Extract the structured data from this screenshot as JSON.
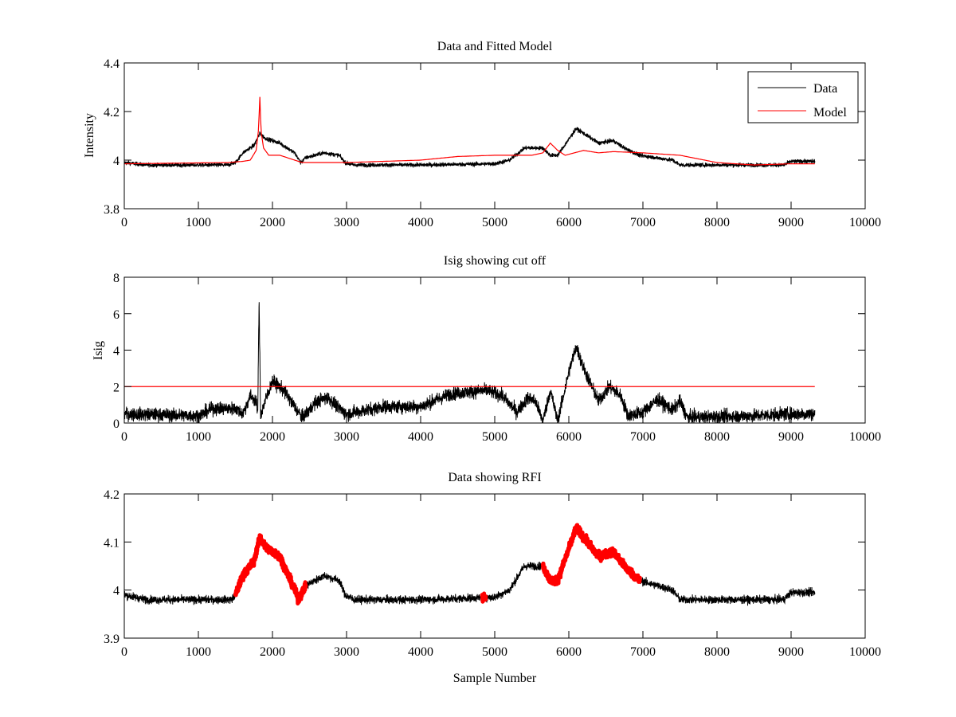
{
  "chart_data": [
    {
      "type": "line",
      "title": "Data and Fitted Model",
      "xlabel": "",
      "ylabel": "Intensity",
      "xlim": [
        0,
        10000
      ],
      "ylim": [
        3.8,
        4.4
      ],
      "xticks": [
        "0",
        "1000",
        "2000",
        "3000",
        "4000",
        "5000",
        "6000",
        "7000",
        "8000",
        "9000",
        "10000"
      ],
      "yticks": [
        "3.8",
        "4",
        "4.2",
        "4.4"
      ],
      "ytick_values": [
        3.8,
        4.0,
        4.2,
        4.4
      ],
      "grid": false,
      "legend": {
        "placement": "top-right",
        "entries": [
          "Data",
          "Model"
        ]
      },
      "series": [
        {
          "name": "Data",
          "color": "#000000",
          "noise": 0.008,
          "anchors": [
            [
              0,
              3.99
            ],
            [
              300,
              3.98
            ],
            [
              1000,
              3.98
            ],
            [
              1400,
              3.98
            ],
            [
              1500,
              3.99
            ],
            [
              1600,
              4.03
            ],
            [
              1750,
              4.06
            ],
            [
              1830,
              4.11
            ],
            [
              1900,
              4.09
            ],
            [
              2100,
              4.07
            ],
            [
              2300,
              4.03
            ],
            [
              2380,
              3.99
            ],
            [
              2450,
              4.01
            ],
            [
              2700,
              4.03
            ],
            [
              2900,
              4.02
            ],
            [
              2980,
              3.99
            ],
            [
              3100,
              3.98
            ],
            [
              4000,
              3.98
            ],
            [
              5000,
              3.985
            ],
            [
              5200,
              4.0
            ],
            [
              5400,
              4.05
            ],
            [
              5650,
              4.05
            ],
            [
              5750,
              4.02
            ],
            [
              5850,
              4.02
            ],
            [
              6100,
              4.13
            ],
            [
              6250,
              4.1
            ],
            [
              6400,
              4.07
            ],
            [
              6600,
              4.08
            ],
            [
              6750,
              4.05
            ],
            [
              6950,
              4.02
            ],
            [
              7400,
              4.0
            ],
            [
              7500,
              3.98
            ],
            [
              8500,
              3.98
            ],
            [
              8900,
              3.98
            ],
            [
              9000,
              3.995
            ],
            [
              9320,
              3.995
            ]
          ]
        },
        {
          "name": "Model",
          "color": "#ff0000",
          "noise": 0,
          "anchors": [
            [
              0,
              3.985
            ],
            [
              1400,
              3.99
            ],
            [
              1600,
              3.995
            ],
            [
              1700,
              4.0
            ],
            [
              1780,
              4.04
            ],
            [
              1810,
              4.12
            ],
            [
              1830,
              4.26
            ],
            [
              1845,
              4.12
            ],
            [
              1880,
              4.05
            ],
            [
              1950,
              4.02
            ],
            [
              2100,
              4.02
            ],
            [
              2300,
              4.0
            ],
            [
              2400,
              3.99
            ],
            [
              3000,
              3.99
            ],
            [
              4000,
              4.0
            ],
            [
              4500,
              4.015
            ],
            [
              5000,
              4.02
            ],
            [
              5500,
              4.02
            ],
            [
              5650,
              4.03
            ],
            [
              5750,
              4.07
            ],
            [
              5850,
              4.04
            ],
            [
              5950,
              4.02
            ],
            [
              6200,
              4.04
            ],
            [
              6400,
              4.03
            ],
            [
              6600,
              4.035
            ],
            [
              7000,
              4.03
            ],
            [
              7500,
              4.02
            ],
            [
              8000,
              3.99
            ],
            [
              8500,
              3.98
            ],
            [
              9000,
              3.985
            ],
            [
              9320,
              3.985
            ]
          ]
        }
      ]
    },
    {
      "type": "line",
      "title": "Isig showing cut off",
      "xlabel": "",
      "ylabel": "Isig",
      "xlim": [
        0,
        10000
      ],
      "ylim": [
        0,
        8
      ],
      "xticks": [
        "0",
        "1000",
        "2000",
        "3000",
        "4000",
        "5000",
        "6000",
        "7000",
        "8000",
        "9000",
        "10000"
      ],
      "yticks": [
        "0",
        "2",
        "4",
        "6",
        "8"
      ],
      "ytick_values": [
        0,
        2,
        4,
        6,
        8
      ],
      "grid": false,
      "cutoff": 2,
      "cutoff_color": "#ff0000",
      "series": [
        {
          "name": "Isig",
          "color": "#000000",
          "noise": 0.35,
          "anchors": [
            [
              0,
              0.5
            ],
            [
              1000,
              0.4
            ],
            [
              1200,
              0.8
            ],
            [
              1500,
              0.8
            ],
            [
              1600,
              0.5
            ],
            [
              1700,
              1.5
            ],
            [
              1780,
              1.2
            ],
            [
              1800,
              0.4
            ],
            [
              1820,
              6.7
            ],
            [
              1840,
              0.4
            ],
            [
              1900,
              1.2
            ],
            [
              2000,
              2.3
            ],
            [
              2150,
              1.8
            ],
            [
              2300,
              0.9
            ],
            [
              2400,
              0.3
            ],
            [
              2600,
              1.2
            ],
            [
              2750,
              1.4
            ],
            [
              2900,
              0.8
            ],
            [
              3000,
              0.5
            ],
            [
              3500,
              0.9
            ],
            [
              4000,
              0.9
            ],
            [
              4400,
              1.6
            ],
            [
              4900,
              1.8
            ],
            [
              5100,
              1.5
            ],
            [
              5300,
              0.6
            ],
            [
              5450,
              1.4
            ],
            [
              5550,
              1.2
            ],
            [
              5650,
              0.1
            ],
            [
              5750,
              1.8
            ],
            [
              5850,
              0.1
            ],
            [
              6000,
              2.8
            ],
            [
              6100,
              4.2
            ],
            [
              6200,
              3.0
            ],
            [
              6400,
              1.2
            ],
            [
              6550,
              2.0
            ],
            [
              6700,
              1.5
            ],
            [
              6800,
              0.4
            ],
            [
              7000,
              0.6
            ],
            [
              7200,
              1.3
            ],
            [
              7400,
              0.7
            ],
            [
              7500,
              1.2
            ],
            [
              7600,
              0.3
            ],
            [
              8500,
              0.4
            ],
            [
              9000,
              0.5
            ],
            [
              9320,
              0.5
            ]
          ]
        }
      ]
    },
    {
      "type": "line",
      "title": "Data showing RFI",
      "xlabel": "Sample Number",
      "ylabel": "",
      "xlim": [
        0,
        10000
      ],
      "ylim": [
        3.9,
        4.2
      ],
      "xticks": [
        "0",
        "1000",
        "2000",
        "3000",
        "4000",
        "5000",
        "6000",
        "7000",
        "8000",
        "9000",
        "10000"
      ],
      "yticks": [
        "3.9",
        "4",
        "4.1",
        "4.2"
      ],
      "ytick_values": [
        3.9,
        4.0,
        4.1,
        4.2
      ],
      "grid": false,
      "series": [
        {
          "name": "Data",
          "color": "#000000",
          "noise": 0.008,
          "anchors": [
            [
              0,
              3.99
            ],
            [
              300,
              3.98
            ],
            [
              1000,
              3.98
            ],
            [
              1450,
              3.98
            ],
            [
              1500,
              3.99
            ],
            [
              1600,
              4.03
            ],
            [
              1750,
              4.06
            ],
            [
              1830,
              4.11
            ],
            [
              1900,
              4.09
            ],
            [
              2100,
              4.07
            ],
            [
              2300,
              4.0
            ],
            [
              2350,
              3.98
            ],
            [
              2450,
              4.01
            ],
            [
              2700,
              4.03
            ],
            [
              2900,
              4.02
            ],
            [
              2980,
              3.99
            ],
            [
              3100,
              3.98
            ],
            [
              4000,
              3.98
            ],
            [
              5000,
              3.985
            ],
            [
              5200,
              4.0
            ],
            [
              5400,
              4.05
            ],
            [
              5650,
              4.05
            ],
            [
              5750,
              4.02
            ],
            [
              5850,
              4.02
            ],
            [
              6100,
              4.13
            ],
            [
              6250,
              4.1
            ],
            [
              6400,
              4.07
            ],
            [
              6600,
              4.08
            ],
            [
              6750,
              4.05
            ],
            [
              6950,
              4.02
            ],
            [
              7400,
              4.0
            ],
            [
              7500,
              3.98
            ],
            [
              8500,
              3.98
            ],
            [
              8900,
              3.98
            ],
            [
              9000,
              3.995
            ],
            [
              9320,
              3.995
            ]
          ]
        },
        {
          "name": "RFI",
          "color": "#ff0000",
          "segments": [
            [
              1500,
              2450
            ],
            [
              4830,
              4880
            ],
            [
              5650,
              6960
            ]
          ]
        }
      ]
    }
  ]
}
